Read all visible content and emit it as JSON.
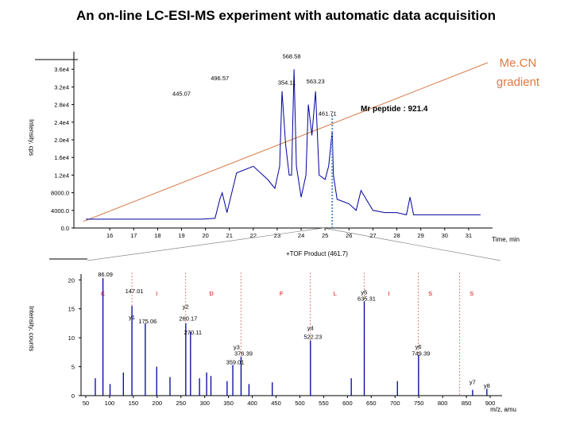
{
  "title": "An on-line LC-ESI-MS experiment with automatic data acquisition",
  "chart_data": [
    {
      "type": "line",
      "xlabel": "Time, min",
      "ylabel": "Intensity, cps",
      "xlim": [
        14.5,
        32
      ],
      "ylim": [
        0,
        40000
      ],
      "x_ticks": [
        "16",
        "17",
        "18",
        "19",
        "20",
        "21",
        "22",
        "23",
        "24",
        "25",
        "26",
        "27",
        "28",
        "29",
        "30",
        "31"
      ],
      "y_ticks": [
        {
          "label": "0.0",
          "value": 0
        },
        {
          "label": "4000.0",
          "value": 4000
        },
        {
          "label": "8000.0",
          "value": 8000
        },
        {
          "label": "1.2e4",
          "value": 12000
        },
        {
          "label": "1.6e4",
          "value": 16000
        },
        {
          "label": "2.0e4",
          "value": 20000
        },
        {
          "label": "2.4e4",
          "value": 24000
        },
        {
          "label": "2.8e4",
          "value": 28000
        },
        {
          "label": "3.2e4",
          "value": 32000
        },
        {
          "label": "3.6e4",
          "value": 36000
        }
      ],
      "peak_labels": [
        {
          "text": "445.07",
          "x": 19.0,
          "y": 30000
        },
        {
          "text": "496.57",
          "x": 20.6,
          "y": 33500
        },
        {
          "text": "354.11",
          "x": 23.4,
          "y": 32500
        },
        {
          "text": "568.58",
          "x": 23.6,
          "y": 38500
        },
        {
          "text": "563.23",
          "x": 24.6,
          "y": 32800
        },
        {
          "text": "461.71",
          "x": 25.1,
          "y": 25500
        }
      ],
      "annotation": "Mr peptide : 921.4",
      "gradient_label": [
        "Me.CN",
        "gradient"
      ],
      "gradient_line": {
        "x": [
          14.9,
          31.8
        ],
        "y": [
          1500,
          37500
        ]
      },
      "series": [
        {
          "x": [
            15.0,
            16.0,
            17.0,
            18.0,
            19.0,
            19.8,
            20.4,
            20.6,
            20.7,
            20.9,
            21.3,
            22.0,
            22.6,
            22.9,
            23.1,
            23.2,
            23.35,
            23.5,
            23.6,
            23.7,
            23.8,
            24.0,
            24.2,
            24.3,
            24.45,
            24.6,
            24.75,
            25.0,
            25.15,
            25.3,
            25.35,
            25.5,
            26.0,
            26.3,
            26.5,
            27.0,
            27.5,
            28.0,
            28.4,
            28.55,
            28.7,
            29.0,
            30.0,
            31.0,
            31.5
          ],
          "y": [
            2000,
            2000,
            2000,
            2000,
            2000,
            2000,
            2200,
            6500,
            8000,
            3500,
            12500,
            14000,
            11000,
            9000,
            14000,
            31000,
            19000,
            12000,
            12000,
            36000,
            14000,
            7000,
            12000,
            28000,
            21000,
            31000,
            12000,
            11000,
            14000,
            22000,
            12000,
            6500,
            5500,
            4000,
            8500,
            4000,
            3500,
            3500,
            3000,
            7000,
            3000,
            3000,
            3000,
            3000,
            3000
          ]
        }
      ]
    },
    {
      "type": "bar",
      "title": "+TOF Product (461.7)",
      "xlabel": "m/z, amu",
      "ylabel": "Intensity, counts",
      "xlim": [
        40,
        925
      ],
      "ylim": [
        0,
        21
      ],
      "x_ticks": [
        "50",
        "100",
        "150",
        "200",
        "250",
        "300",
        "350",
        "400",
        "450",
        "500",
        "550",
        "600",
        "650",
        "700",
        "750",
        "800",
        "850",
        "900"
      ],
      "y_ticks": [
        {
          "label": "0",
          "value": 0
        },
        {
          "label": "5",
          "value": 5
        },
        {
          "label": "10",
          "value": 10
        },
        {
          "label": "15",
          "value": 15
        },
        {
          "label": "20",
          "value": 20
        }
      ],
      "peaks": {
        "mz": [
          70,
          86.09,
          101,
          129,
          147.01,
          175.06,
          199,
          227,
          260.17,
          270.11,
          289,
          304,
          313,
          347,
          359.01,
          376.39,
          393,
          442,
          522.23,
          608,
          635.31,
          705,
          749.39,
          863,
          893
        ],
        "intensity": [
          3,
          20.3,
          2,
          4,
          15.5,
          12.5,
          5,
          3.2,
          12.5,
          11,
          3,
          4,
          3.4,
          2.5,
          5.3,
          6.7,
          2,
          2.3,
          9.5,
          3,
          16.3,
          2.5,
          7,
          1,
          1.2
        ]
      },
      "peak_labels": [
        {
          "text": "86.09",
          "mz": 86.09,
          "y": 20.6
        },
        {
          "text": "147.01",
          "mz": 147.01,
          "y": 17.7
        },
        {
          "text": "175.06",
          "mz": 175.06,
          "y": 12.5
        },
        {
          "text": "260.17",
          "mz": 260.17,
          "y": 13.0
        },
        {
          "text": "270.11",
          "mz": 270.11,
          "y": 10.6
        },
        {
          "text": "376.39",
          "mz": 376.39,
          "y": 6.9
        },
        {
          "text": "359.01",
          "mz": 359.01,
          "y": 5.4
        },
        {
          "text": "522.23",
          "mz": 522.23,
          "y": 9.8
        },
        {
          "text": "635.31",
          "mz": 635.31,
          "y": 16.4
        },
        {
          "text": "749.39",
          "mz": 749.39,
          "y": 6.9
        }
      ],
      "ion_labels": [
        {
          "text": "y1",
          "mz": 147,
          "y": 13.2
        },
        {
          "text": "y2",
          "mz": 260,
          "y": 15.0
        },
        {
          "text": "y3",
          "mz": 367,
          "y": 8.0
        },
        {
          "text": "y4",
          "mz": 522,
          "y": 11.3
        },
        {
          "text": "y5",
          "mz": 635,
          "y": 17.5
        },
        {
          "text": "y6",
          "mz": 749,
          "y": 8.1
        },
        {
          "text": "y7",
          "mz": 863,
          "y": 2.0
        },
        {
          "text": "y8",
          "mz": 893,
          "y": 1.4
        }
      ],
      "sequence": [
        {
          "text": "K",
          "mz": 86
        },
        {
          "text": "I",
          "mz": 199
        },
        {
          "text": "D",
          "mz": 314
        },
        {
          "text": "F",
          "mz": 461
        },
        {
          "text": "L",
          "mz": 574
        },
        {
          "text": "I",
          "mz": 687
        },
        {
          "text": "S",
          "mz": 774
        },
        {
          "text": "S",
          "mz": 861
        }
      ],
      "sequence_dividers": [
        147,
        260,
        376,
        522,
        635,
        749,
        836
      ]
    }
  ]
}
